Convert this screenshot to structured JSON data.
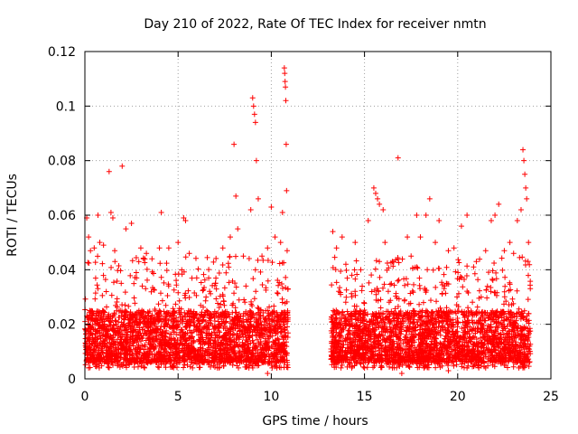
{
  "chart_data": {
    "type": "scatter",
    "title": "Day 210 of 2022, Rate Of TEC Index for receiver nmtn",
    "xlabel": "GPS time / hours",
    "ylabel": "ROTI / TECUs",
    "xlim": [
      0,
      25
    ],
    "ylim": [
      0,
      0.12
    ],
    "x_ticks": [
      "0",
      "5",
      "10",
      "15",
      "20",
      "25"
    ],
    "y_ticks": [
      "0",
      "0.02",
      "0.04",
      "0.06",
      "0.08",
      "0.1",
      "0.12"
    ],
    "grid": true,
    "marker": "plus",
    "color": "#ff0000",
    "series": [
      {
        "points": [
          [
            0.1,
            0.059
          ],
          [
            0.2,
            0.052
          ],
          [
            0.3,
            0.047
          ],
          [
            0.5,
            0.048
          ],
          [
            0.7,
            0.06
          ],
          [
            0.8,
            0.05
          ],
          [
            1.0,
            0.049
          ],
          [
            1.3,
            0.076
          ],
          [
            1.4,
            0.061
          ],
          [
            1.5,
            0.059
          ],
          [
            1.6,
            0.047
          ],
          [
            2.0,
            0.078
          ],
          [
            2.2,
            0.055
          ],
          [
            2.5,
            0.057
          ],
          [
            3.0,
            0.048
          ],
          [
            3.3,
            0.046
          ],
          [
            3.6,
            0.044
          ],
          [
            4.0,
            0.048
          ],
          [
            4.1,
            0.061
          ],
          [
            4.5,
            0.048
          ],
          [
            5.0,
            0.05
          ],
          [
            5.3,
            0.059
          ],
          [
            5.4,
            0.058
          ],
          [
            5.6,
            0.046
          ],
          [
            6.0,
            0.037
          ],
          [
            6.5,
            0.03
          ],
          [
            7.0,
            0.035
          ],
          [
            7.4,
            0.048
          ],
          [
            7.8,
            0.052
          ],
          [
            8.0,
            0.086
          ],
          [
            8.1,
            0.067
          ],
          [
            8.2,
            0.055
          ],
          [
            8.5,
            0.045
          ],
          [
            8.9,
            0.062
          ],
          [
            9.0,
            0.103
          ],
          [
            9.05,
            0.1
          ],
          [
            9.1,
            0.097
          ],
          [
            9.15,
            0.094
          ],
          [
            9.2,
            0.08
          ],
          [
            9.3,
            0.066
          ],
          [
            9.5,
            0.045
          ],
          [
            9.8,
            0.048
          ],
          [
            10.0,
            0.063
          ],
          [
            10.2,
            0.052
          ],
          [
            10.5,
            0.05
          ],
          [
            10.6,
            0.061
          ],
          [
            10.7,
            0.114
          ],
          [
            10.72,
            0.112
          ],
          [
            10.74,
            0.109
          ],
          [
            10.76,
            0.107
          ],
          [
            10.78,
            0.102
          ],
          [
            10.8,
            0.086
          ],
          [
            10.82,
            0.069
          ],
          [
            10.85,
            0.047
          ],
          [
            13.3,
            0.054
          ],
          [
            13.5,
            0.048
          ],
          [
            13.8,
            0.052
          ],
          [
            14.0,
            0.042
          ],
          [
            14.5,
            0.05
          ],
          [
            14.8,
            0.04
          ],
          [
            15.2,
            0.058
          ],
          [
            15.5,
            0.07
          ],
          [
            15.6,
            0.068
          ],
          [
            15.7,
            0.066
          ],
          [
            15.8,
            0.064
          ],
          [
            16.0,
            0.062
          ],
          [
            16.1,
            0.05
          ],
          [
            16.5,
            0.043
          ],
          [
            16.8,
            0.081
          ],
          [
            17.3,
            0.052
          ],
          [
            17.5,
            0.045
          ],
          [
            17.8,
            0.06
          ],
          [
            18.0,
            0.052
          ],
          [
            18.3,
            0.06
          ],
          [
            18.5,
            0.066
          ],
          [
            18.8,
            0.05
          ],
          [
            19.0,
            0.058
          ],
          [
            19.5,
            0.047
          ],
          [
            19.8,
            0.048
          ],
          [
            20.2,
            0.056
          ],
          [
            20.5,
            0.06
          ],
          [
            21.0,
            0.043
          ],
          [
            21.5,
            0.047
          ],
          [
            21.8,
            0.058
          ],
          [
            22.0,
            0.06
          ],
          [
            22.2,
            0.064
          ],
          [
            22.5,
            0.047
          ],
          [
            22.8,
            0.05
          ],
          [
            23.0,
            0.046
          ],
          [
            23.2,
            0.058
          ],
          [
            23.4,
            0.062
          ],
          [
            23.5,
            0.084
          ],
          [
            23.55,
            0.08
          ],
          [
            23.6,
            0.075
          ],
          [
            23.65,
            0.07
          ],
          [
            23.7,
            0.066
          ],
          [
            23.8,
            0.05
          ],
          [
            0.2,
            0.004
          ],
          [
            1.5,
            0.005
          ],
          [
            3.2,
            0.004
          ],
          [
            5.5,
            0.005
          ],
          [
            7.2,
            0.004
          ],
          [
            8.8,
            0.004
          ],
          [
            9.8,
            0.002
          ],
          [
            10.3,
            0.004
          ],
          [
            13.8,
            0.005
          ],
          [
            15.0,
            0.004
          ],
          [
            16.5,
            0.004
          ],
          [
            17.0,
            0.002
          ],
          [
            18.2,
            0.004
          ],
          [
            19.5,
            0.003
          ],
          [
            20.5,
            0.004
          ],
          [
            21.5,
            0.004
          ],
          [
            22.5,
            0.005
          ],
          [
            23.5,
            0.004
          ]
        ]
      }
    ],
    "dense_bands": [
      {
        "x": [
          0.0,
          10.9
        ],
        "y_core": [
          0.006,
          0.025
        ],
        "y_spread": [
          0.004,
          0.045
        ]
      },
      {
        "x": [
          13.2,
          23.9
        ],
        "y_core": [
          0.006,
          0.025
        ],
        "y_spread": [
          0.004,
          0.045
        ]
      }
    ]
  }
}
